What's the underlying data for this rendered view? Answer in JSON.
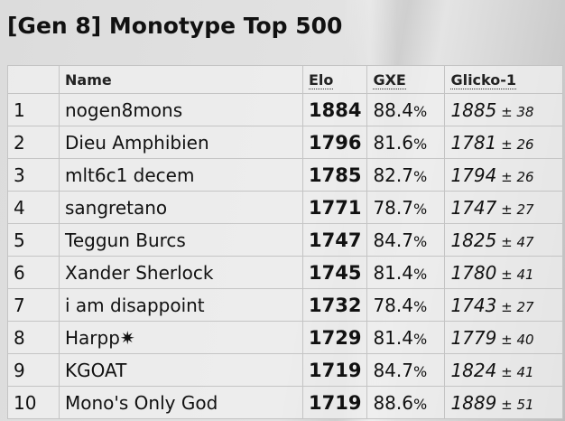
{
  "title": "[Gen 8] Monotype Top 500",
  "headers": {
    "rank": "",
    "name": "Name",
    "elo": "Elo",
    "gxe": "GXE",
    "glicko": "Glicko-1"
  },
  "rows": [
    {
      "rank": "1",
      "name": "nogen8mons",
      "elo": "1884",
      "gxe": "88.4",
      "glicko": "1885",
      "dev": "38"
    },
    {
      "rank": "2",
      "name": "Dieu Amphibien",
      "elo": "1796",
      "gxe": "81.6",
      "glicko": "1781",
      "dev": "26"
    },
    {
      "rank": "3",
      "name": "mlt6c1 decem",
      "elo": "1785",
      "gxe": "82.7",
      "glicko": "1794",
      "dev": "26"
    },
    {
      "rank": "4",
      "name": "sangretano",
      "elo": "1771",
      "gxe": "78.7",
      "glicko": "1747",
      "dev": "27"
    },
    {
      "rank": "5",
      "name": "Teggun Burcs",
      "elo": "1747",
      "gxe": "84.7",
      "glicko": "1825",
      "dev": "47"
    },
    {
      "rank": "6",
      "name": "Xander Sherlock",
      "elo": "1745",
      "gxe": "81.4",
      "glicko": "1780",
      "dev": "41"
    },
    {
      "rank": "7",
      "name": "i am disappoint",
      "elo": "1732",
      "gxe": "78.4",
      "glicko": "1743",
      "dev": "27"
    },
    {
      "rank": "8",
      "name": "Harpp✷",
      "elo": "1729",
      "gxe": "81.4",
      "glicko": "1779",
      "dev": "40"
    },
    {
      "rank": "9",
      "name": "KGOAT",
      "elo": "1719",
      "gxe": "84.7",
      "glicko": "1824",
      "dev": "41"
    },
    {
      "rank": "10",
      "name": "Mono's Only God",
      "elo": "1719",
      "gxe": "88.6",
      "glicko": "1889",
      "dev": "51"
    }
  ],
  "symbols": {
    "percent": "%",
    "plus_minus": "±"
  }
}
